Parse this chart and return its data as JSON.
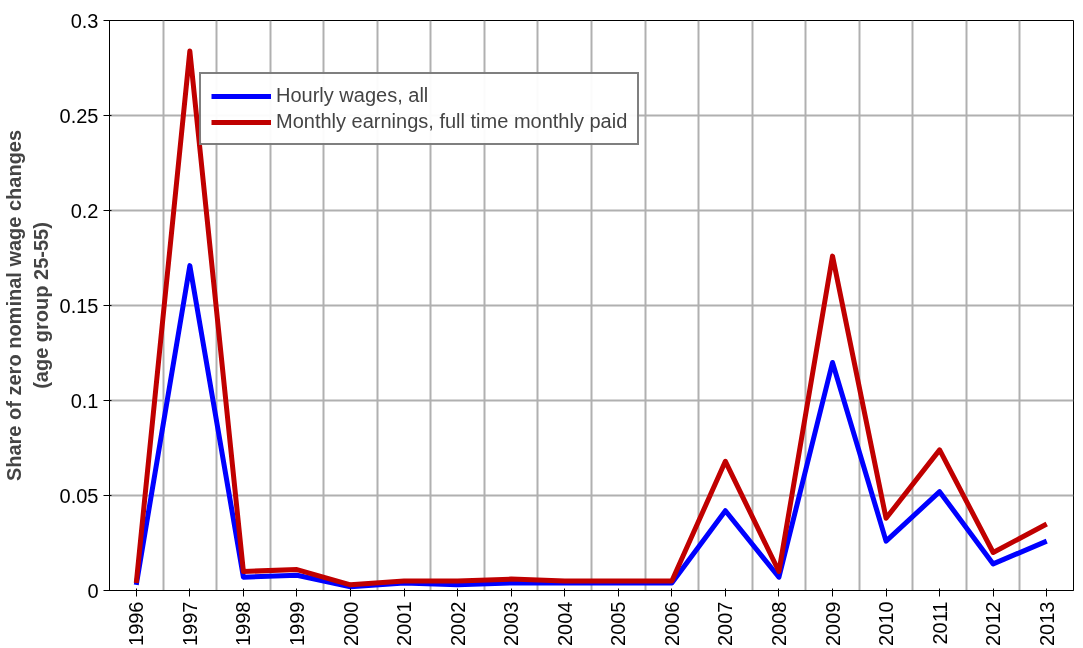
{
  "chart_data": {
    "type": "line",
    "ylabel": "Share of zero nominal wage changes\n(age group 25-55)",
    "categories": [
      "1996",
      "1997",
      "1998",
      "1999",
      "2000",
      "2001",
      "2002",
      "2003",
      "2004",
      "2005",
      "2006",
      "2007",
      "2008",
      "2009",
      "2010",
      "2011",
      "2012",
      "2013"
    ],
    "series": [
      {
        "name": "Hourly wages, all",
        "color": "#0000ff",
        "values": [
          0.003,
          0.171,
          0.007,
          0.008,
          0.002,
          0.004,
          0.003,
          0.004,
          0.004,
          0.004,
          0.004,
          0.042,
          0.007,
          0.12,
          0.026,
          0.052,
          0.014,
          0.026
        ]
      },
      {
        "name": "Monthly earnings, full time monthly paid",
        "color": "#c00000",
        "values": [
          0.004,
          0.284,
          0.01,
          0.011,
          0.003,
          0.005,
          0.005,
          0.006,
          0.005,
          0.005,
          0.005,
          0.068,
          0.01,
          0.176,
          0.038,
          0.074,
          0.02,
          0.035
        ]
      }
    ],
    "ylim": [
      0,
      0.3
    ],
    "yticks": [
      0,
      {
        "value": 0.05,
        "label": "0.05"
      },
      {
        "value": 0.1,
        "label": "0.1"
      },
      {
        "value": 0.15,
        "label": "0.15"
      },
      {
        "value": 0.2,
        "label": "0.2"
      },
      {
        "value": 0.25,
        "label": "0.25"
      },
      {
        "value": 0.3,
        "label": "0.3"
      }
    ],
    "grid": true,
    "legend": "top left",
    "marker": "none",
    "line_style": "solid"
  }
}
